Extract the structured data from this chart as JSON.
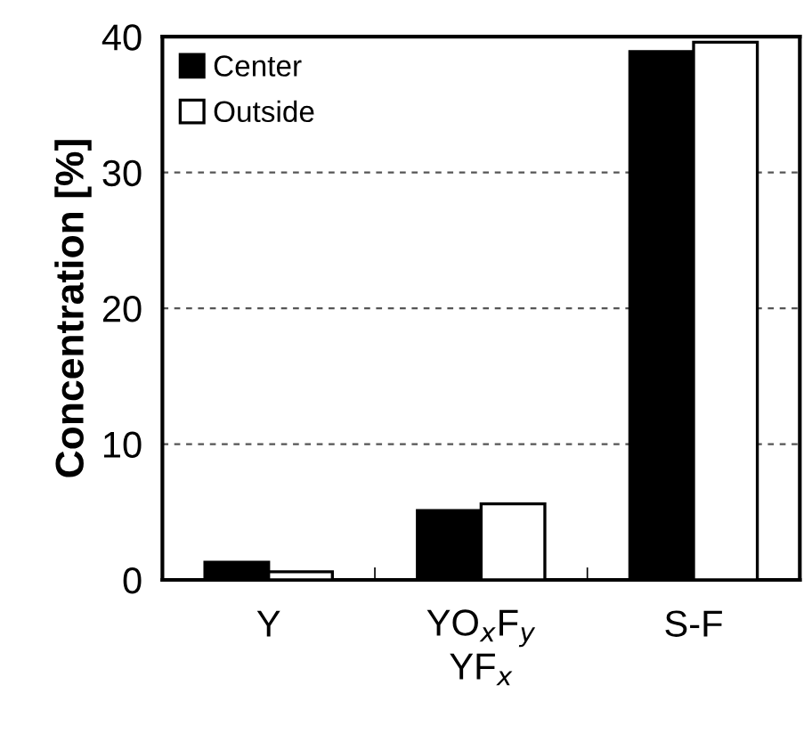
{
  "chart_data": {
    "type": "bar",
    "ylabel": "Concentration [%]",
    "categories": [
      "Y",
      "YO$_{x}$F$_{y}$\nYF$_{x}$",
      "S-F"
    ],
    "series": [
      {
        "name": "Center",
        "color": "#000000",
        "values": [
          1.3,
          5.1,
          38.9
        ]
      },
      {
        "name": "Outside",
        "color": "#ffffff",
        "values": [
          0.6,
          5.6,
          39.6
        ]
      }
    ],
    "ylim": [
      0,
      40
    ],
    "yticks": [
      0,
      10,
      20,
      30,
      40
    ],
    "grid": "y",
    "legend": "top left"
  }
}
